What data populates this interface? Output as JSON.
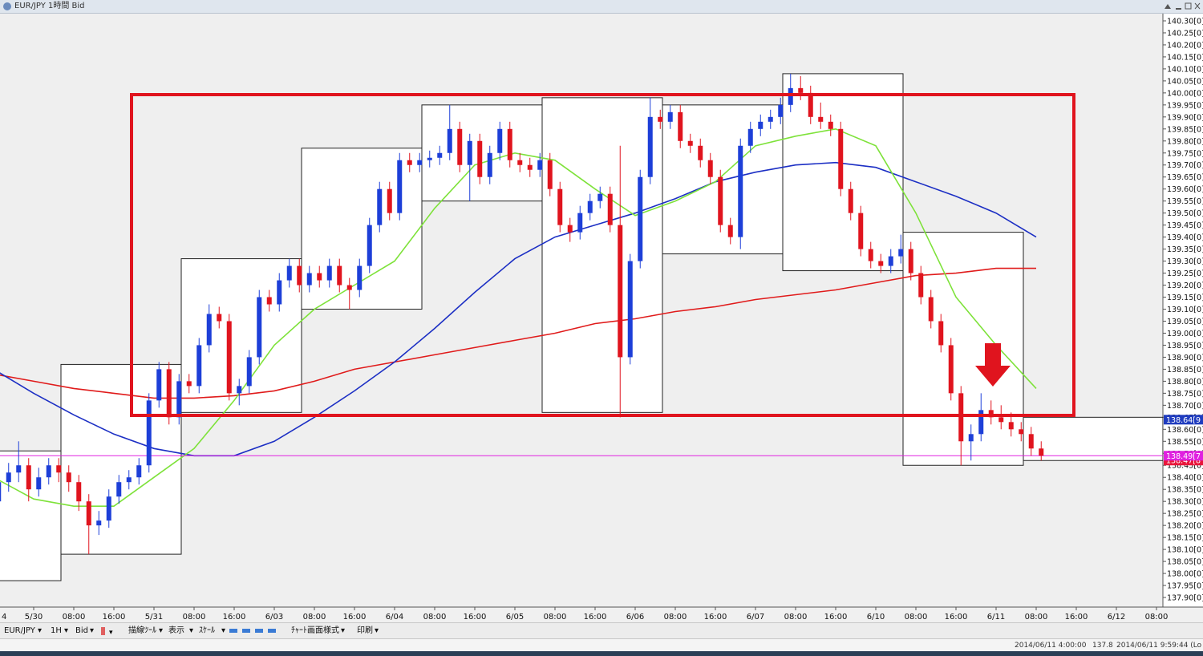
{
  "window_title": "EUR/JPY 1時間 Bid",
  "toolbar": [
    "EUR/JPY",
    "1H",
    "Bid",
    "描線ﾂｰﾙ",
    "表示",
    "ｽｹｰﾙ",
    "ﾁｬｰﾄ画面様式",
    "印刷"
  ],
  "status": [
    "2014/06/11 4:00:00",
    "137.8",
    "2014/06/11 9:59:44 (Lo"
  ],
  "chart_data": {
    "type": "candlestick",
    "categories": [
      "4",
      "5/30",
      "08:00",
      "16:00",
      "5/31",
      "08:00",
      "16:00",
      "6/03",
      "08:00",
      "16:00",
      "6/04",
      "08:00",
      "16:00",
      "6/05",
      "08:00",
      "16:00",
      "6/06",
      "08:00",
      "16:00",
      "6/07",
      "08:00",
      "16:00",
      "6/10",
      "08:00",
      "16:00",
      "6/11",
      "08:00",
      "16:00",
      "6/12",
      "08:00"
    ],
    "ylim": [
      137.86,
      140.33
    ],
    "yticks": [
      {
        "value": 140.3,
        "label": "140.30[0]"
      },
      {
        "value": 140.25,
        "label": "140.25[0]"
      },
      {
        "value": 140.2,
        "label": "140.20[0]"
      },
      {
        "value": 140.15,
        "label": "140.15[0]"
      },
      {
        "value": 140.1,
        "label": "140.10[0]"
      },
      {
        "value": 140.05,
        "label": "140.05[0]"
      },
      {
        "value": 140.0,
        "label": "140.00[0]"
      },
      {
        "value": 139.95,
        "label": "139.95[0]"
      },
      {
        "value": 139.9,
        "label": "139.90[0]"
      },
      {
        "value": 139.85,
        "label": "139.85[0]"
      },
      {
        "value": 139.8,
        "label": "139.80[0]"
      },
      {
        "value": 139.75,
        "label": "139.75[0]"
      },
      {
        "value": 139.7,
        "label": "139.70[0]"
      },
      {
        "value": 139.65,
        "label": "139.65[0]"
      },
      {
        "value": 139.6,
        "label": "139.60[0]"
      },
      {
        "value": 139.55,
        "label": "139.55[0]"
      },
      {
        "value": 139.5,
        "label": "139.50[0]"
      },
      {
        "value": 139.45,
        "label": "139.45[0]"
      },
      {
        "value": 139.4,
        "label": "139.40[0]"
      },
      {
        "value": 139.35,
        "label": "139.35[0]"
      },
      {
        "value": 139.3,
        "label": "139.30[0]"
      },
      {
        "value": 139.25,
        "label": "139.25[0]"
      },
      {
        "value": 139.2,
        "label": "139.20[0]"
      },
      {
        "value": 139.15,
        "label": "139.15[0]"
      },
      {
        "value": 139.1,
        "label": "139.10[0]"
      },
      {
        "value": 139.05,
        "label": "139.05[0]"
      },
      {
        "value": 139.0,
        "label": "139.00[0]"
      },
      {
        "value": 138.95,
        "label": "138.95[0]"
      },
      {
        "value": 138.9,
        "label": "138.90[0]"
      },
      {
        "value": 138.85,
        "label": "138.85[0]"
      },
      {
        "value": 138.8,
        "label": "138.80[0]"
      },
      {
        "value": 138.75,
        "label": "138.75[0]"
      },
      {
        "value": 138.7,
        "label": "138.70[0]"
      },
      {
        "value": 138.65,
        "label": "138.65[0]"
      },
      {
        "value": 138.6,
        "label": "138.60[0]"
      },
      {
        "value": 138.55,
        "label": "138.55[0]"
      },
      {
        "value": 138.5,
        "label": "138.50[0]"
      },
      {
        "value": 138.45,
        "label": "138.45[0]"
      },
      {
        "value": 138.4,
        "label": "138.40[0]"
      },
      {
        "value": 138.35,
        "label": "138.35[0]"
      },
      {
        "value": 138.3,
        "label": "138.30[0]"
      },
      {
        "value": 138.25,
        "label": "138.25[0]"
      },
      {
        "value": 138.2,
        "label": "138.20[0]"
      },
      {
        "value": 138.15,
        "label": "138.15[0]"
      },
      {
        "value": 138.1,
        "label": "138.10[0]"
      },
      {
        "value": 138.05,
        "label": "138.05[0]"
      },
      {
        "value": 138.0,
        "label": "138.00[0]"
      },
      {
        "value": 137.95,
        "label": "137.95[0]"
      },
      {
        "value": 137.9,
        "label": "137.90[0]"
      }
    ],
    "up_color": "#1d3fd8",
    "down_color": "#e0141e",
    "candles": [
      [
        138.3,
        138.42,
        138.1,
        138.38
      ],
      [
        138.38,
        138.46,
        138.34,
        138.42
      ],
      [
        138.42,
        138.55,
        138.38,
        138.45
      ],
      [
        138.45,
        138.48,
        138.3,
        138.35
      ],
      [
        138.35,
        138.44,
        138.32,
        138.4
      ],
      [
        138.4,
        138.48,
        138.37,
        138.45
      ],
      [
        138.45,
        138.48,
        138.38,
        138.42
      ],
      [
        138.42,
        138.45,
        138.34,
        138.38
      ],
      [
        138.38,
        138.41,
        138.26,
        138.3
      ],
      [
        138.3,
        138.33,
        138.08,
        138.2
      ],
      [
        138.2,
        138.26,
        138.16,
        138.22
      ],
      [
        138.22,
        138.35,
        138.19,
        138.32
      ],
      [
        138.32,
        138.41,
        138.29,
        138.38
      ],
      [
        138.38,
        138.43,
        138.35,
        138.4
      ],
      [
        138.4,
        138.48,
        138.37,
        138.45
      ],
      [
        138.45,
        138.75,
        138.42,
        138.72
      ],
      [
        138.72,
        138.88,
        138.69,
        138.85
      ],
      [
        138.85,
        138.88,
        138.62,
        138.65
      ],
      [
        138.65,
        138.83,
        138.62,
        138.8
      ],
      [
        138.8,
        138.83,
        138.75,
        138.78
      ],
      [
        138.78,
        138.98,
        138.75,
        138.95
      ],
      [
        138.95,
        139.12,
        138.92,
        139.08
      ],
      [
        139.08,
        139.11,
        139.02,
        139.05
      ],
      [
        139.05,
        139.08,
        138.72,
        138.75
      ],
      [
        138.75,
        138.81,
        138.7,
        138.78
      ],
      [
        138.78,
        138.93,
        138.75,
        138.9
      ],
      [
        138.9,
        139.18,
        138.87,
        139.15
      ],
      [
        139.15,
        139.18,
        139.09,
        139.12
      ],
      [
        139.12,
        139.25,
        139.09,
        139.22
      ],
      [
        139.22,
        139.31,
        139.19,
        139.28
      ],
      [
        139.28,
        139.31,
        139.17,
        139.2
      ],
      [
        139.2,
        139.28,
        139.17,
        139.25
      ],
      [
        139.25,
        139.28,
        139.19,
        139.22
      ],
      [
        139.22,
        139.31,
        139.19,
        139.28
      ],
      [
        139.28,
        139.31,
        139.17,
        139.2
      ],
      [
        139.2,
        139.23,
        139.1,
        139.18
      ],
      [
        139.18,
        139.31,
        139.15,
        139.28
      ],
      [
        139.28,
        139.48,
        139.25,
        139.45
      ],
      [
        139.45,
        139.63,
        139.42,
        139.6
      ],
      [
        139.6,
        139.63,
        139.47,
        139.5
      ],
      [
        139.5,
        139.75,
        139.47,
        139.72
      ],
      [
        139.72,
        139.75,
        139.67,
        139.7
      ],
      [
        139.7,
        139.75,
        139.67,
        139.72
      ],
      [
        139.72,
        139.76,
        139.69,
        139.73
      ],
      [
        139.73,
        139.78,
        139.7,
        139.75
      ],
      [
        139.75,
        139.95,
        139.72,
        139.85
      ],
      [
        139.85,
        139.88,
        139.67,
        139.7
      ],
      [
        139.7,
        139.83,
        139.55,
        139.8
      ],
      [
        139.8,
        139.83,
        139.62,
        139.65
      ],
      [
        139.65,
        139.78,
        139.62,
        139.75
      ],
      [
        139.75,
        139.88,
        139.72,
        139.85
      ],
      [
        139.85,
        139.88,
        139.69,
        139.72
      ],
      [
        139.72,
        139.75,
        139.67,
        139.7
      ],
      [
        139.7,
        139.73,
        139.65,
        139.68
      ],
      [
        139.68,
        139.75,
        139.65,
        139.72
      ],
      [
        139.72,
        139.75,
        139.57,
        139.6
      ],
      [
        139.6,
        139.63,
        139.42,
        139.45
      ],
      [
        139.45,
        139.48,
        139.38,
        139.42
      ],
      [
        139.42,
        139.53,
        139.39,
        139.5
      ],
      [
        139.5,
        139.58,
        139.47,
        139.55
      ],
      [
        139.55,
        139.61,
        139.52,
        139.58
      ],
      [
        139.58,
        139.61,
        139.42,
        139.45
      ],
      [
        139.45,
        139.78,
        138.65,
        138.9
      ],
      [
        138.9,
        139.33,
        138.87,
        139.3
      ],
      [
        139.3,
        139.68,
        139.27,
        139.65
      ],
      [
        139.65,
        139.98,
        139.62,
        139.9
      ],
      [
        139.9,
        139.93,
        139.85,
        139.88
      ],
      [
        139.88,
        139.95,
        139.85,
        139.92
      ],
      [
        139.92,
        139.95,
        139.77,
        139.8
      ],
      [
        139.8,
        139.83,
        139.75,
        139.78
      ],
      [
        139.78,
        139.81,
        139.69,
        139.72
      ],
      [
        139.72,
        139.75,
        139.62,
        139.65
      ],
      [
        139.65,
        139.68,
        139.42,
        139.45
      ],
      [
        139.45,
        139.48,
        139.37,
        139.4
      ],
      [
        139.4,
        139.81,
        139.35,
        139.78
      ],
      [
        139.78,
        139.88,
        139.75,
        139.85
      ],
      [
        139.85,
        139.91,
        139.82,
        139.88
      ],
      [
        139.88,
        139.93,
        139.85,
        139.9
      ],
      [
        139.9,
        139.98,
        139.87,
        139.95
      ],
      [
        139.95,
        140.08,
        139.92,
        140.02
      ],
      [
        140.02,
        140.07,
        139.97,
        140.0
      ],
      [
        140.0,
        140.03,
        139.87,
        139.9
      ],
      [
        139.9,
        139.96,
        139.85,
        139.88
      ],
      [
        139.88,
        139.91,
        139.82,
        139.85
      ],
      [
        139.85,
        139.88,
        139.57,
        139.6
      ],
      [
        139.6,
        139.63,
        139.47,
        139.5
      ],
      [
        139.5,
        139.53,
        139.32,
        139.35
      ],
      [
        139.35,
        139.38,
        139.27,
        139.3
      ],
      [
        139.3,
        139.33,
        139.25,
        139.28
      ],
      [
        139.28,
        139.35,
        139.25,
        139.32
      ],
      [
        139.32,
        139.41,
        139.29,
        139.35
      ],
      [
        139.35,
        139.38,
        139.22,
        139.25
      ],
      [
        139.25,
        139.28,
        139.12,
        139.15
      ],
      [
        139.15,
        139.18,
        139.02,
        139.05
      ],
      [
        139.05,
        139.08,
        138.92,
        138.95
      ],
      [
        138.95,
        138.98,
        138.72,
        138.75
      ],
      [
        138.75,
        138.78,
        138.45,
        138.55
      ],
      [
        138.55,
        138.62,
        138.47,
        138.58
      ],
      [
        138.58,
        138.75,
        138.55,
        138.68
      ],
      [
        138.68,
        138.72,
        138.62,
        138.65
      ],
      [
        138.65,
        138.7,
        138.6,
        138.63
      ],
      [
        138.63,
        138.67,
        138.57,
        138.6
      ],
      [
        138.6,
        138.63,
        138.55,
        138.58
      ],
      [
        138.58,
        138.61,
        138.49,
        138.52
      ],
      [
        138.52,
        138.55,
        138.47,
        138.49
      ]
    ],
    "series": [
      {
        "color": "#e01b1b",
        "values": [
          138.83,
          138.8,
          138.77,
          138.75,
          138.73,
          138.73,
          138.74,
          138.76,
          138.8,
          138.85,
          138.88,
          138.91,
          138.94,
          138.97,
          139.0,
          139.04,
          139.06,
          139.09,
          139.11,
          139.14,
          139.16,
          139.18,
          139.21,
          139.24,
          139.25,
          139.27,
          139.27,
          null,
          null,
          null
        ]
      },
      {
        "color": "#1c2fc4",
        "values": [
          138.85,
          138.75,
          138.66,
          138.58,
          138.52,
          138.49,
          138.49,
          138.55,
          138.65,
          138.76,
          138.88,
          139.02,
          139.17,
          139.31,
          139.4,
          139.45,
          139.5,
          139.56,
          139.63,
          139.67,
          139.7,
          139.71,
          139.69,
          139.63,
          139.57,
          139.5,
          139.4,
          null,
          null,
          null
        ]
      },
      {
        "color": "#7ee23a",
        "values": [
          138.4,
          138.31,
          138.28,
          138.28,
          138.4,
          138.52,
          138.72,
          138.95,
          139.1,
          139.2,
          139.3,
          139.52,
          139.7,
          139.75,
          139.72,
          139.6,
          139.49,
          139.55,
          139.63,
          139.78,
          139.82,
          139.85,
          139.78,
          139.5,
          139.15,
          138.95,
          138.77,
          null,
          null,
          null
        ]
      }
    ],
    "daily_ranges": [
      {
        "high": 138.51,
        "low": 137.97
      },
      {
        "high": 138.87,
        "low": 138.08
      },
      {
        "high": 139.31,
        "low": 138.67
      },
      {
        "high": 139.77,
        "low": 139.1
      },
      {
        "high": 139.95,
        "low": 139.55
      },
      {
        "high": 139.98,
        "low": 138.67
      },
      {
        "high": 139.95,
        "low": 139.33
      },
      {
        "high": 140.08,
        "low": 139.26
      },
      {
        "high": 139.42,
        "low": 138.45
      },
      {
        "high": 138.65,
        "low": 138.47
      }
    ],
    "price_tags": [
      {
        "value": 138.64,
        "label": "138.64[9",
        "color": "#1f3cbf"
      },
      {
        "value": 138.47,
        "label": "138.47[8",
        "color": "#e8173a"
      },
      {
        "value": 138.49,
        "label": "138.49[7",
        "color": "#e020e0"
      }
    ]
  }
}
